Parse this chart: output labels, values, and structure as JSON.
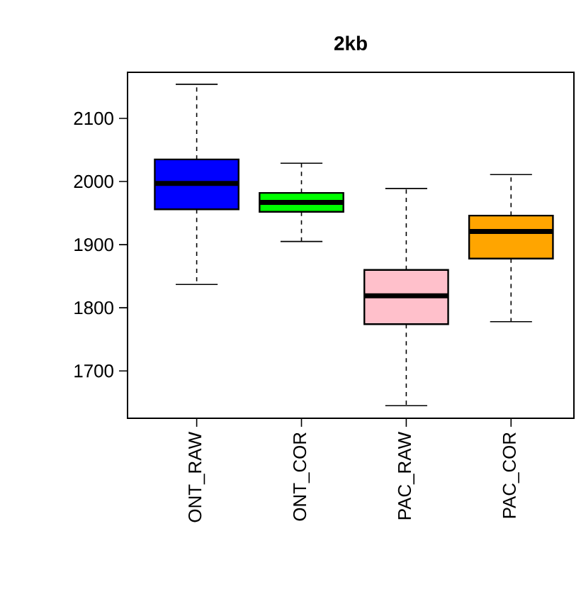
{
  "chart_data": {
    "type": "box",
    "title": "**2kb**",
    "categories": [
      "ONT_RAW",
      "ONT_COR",
      "PAC_RAW",
      "PAC_COR"
    ],
    "colors": [
      "#0000ff",
      "#00ff00",
      "#ffc0cb",
      "#ffa500"
    ],
    "boxes": [
      {
        "low": 1837,
        "q1": 1956,
        "median": 1997,
        "q3": 2035,
        "high": 2154
      },
      {
        "low": 1905,
        "q1": 1952,
        "median": 1967,
        "q3": 1982,
        "high": 2029
      },
      {
        "low": 1645,
        "q1": 1774,
        "median": 1819,
        "q3": 1860,
        "high": 1989
      },
      {
        "low": 1778,
        "q1": 1878,
        "median": 1921,
        "q3": 1946,
        "high": 2011
      }
    ],
    "ylim": [
      1625,
      2173
    ],
    "yticks": [
      1700,
      1800,
      1900,
      2000,
      2100
    ]
  }
}
